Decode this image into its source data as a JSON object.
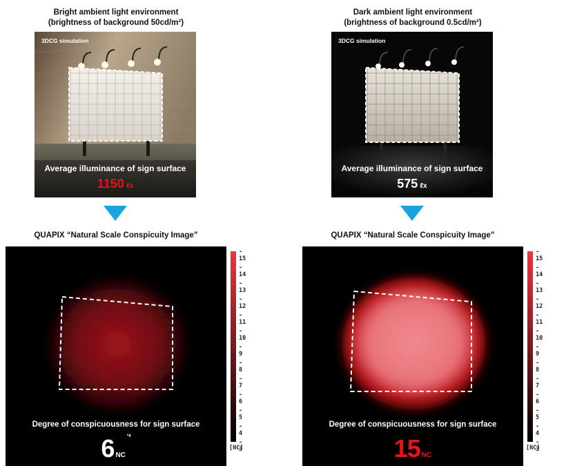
{
  "left": {
    "heading_line1": "Bright ambient light environment",
    "heading_line2": "(brightness of background 50cd/m²)",
    "sim_label": "3DCG simulation",
    "illum_caption": "Average illuminance of sign surface",
    "illum_value": "1150",
    "illum_unit": "ℓx",
    "illum_color": "#e8121a",
    "quapix_heading": "QUAPIX “Natural Scale Conspicuity Image”",
    "deg_caption": "Degree of conspicuousness for sign surface",
    "deg_value": "6",
    "deg_unit": "NC",
    "deg_note": "*4",
    "deg_color": "#ffffff"
  },
  "right": {
    "heading_line1": "Dark ambient light environment",
    "heading_line2": "(brightness of background 0.5cd/m²)",
    "sim_label": "3DCG simulation",
    "illum_caption": "Average illuminance of sign surface",
    "illum_value": "575",
    "illum_unit": "ℓx",
    "illum_color": "#ffffff",
    "quapix_heading": "QUAPIX “Natural Scale Conspicuity Image”",
    "deg_caption": "Degree of conspicuousness for sign surface",
    "deg_value": "15",
    "deg_unit": "NC",
    "deg_color": "#e8121a"
  },
  "scale": {
    "ticks": [
      "15",
      "14",
      "13",
      "12",
      "11",
      "10",
      "9",
      "8",
      "7",
      "6",
      "5",
      "4",
      "3"
    ],
    "unit": "[NC]",
    "color_high": "#e8373f",
    "color_low": "#000000"
  },
  "arrow_color": "#1aa3df"
}
